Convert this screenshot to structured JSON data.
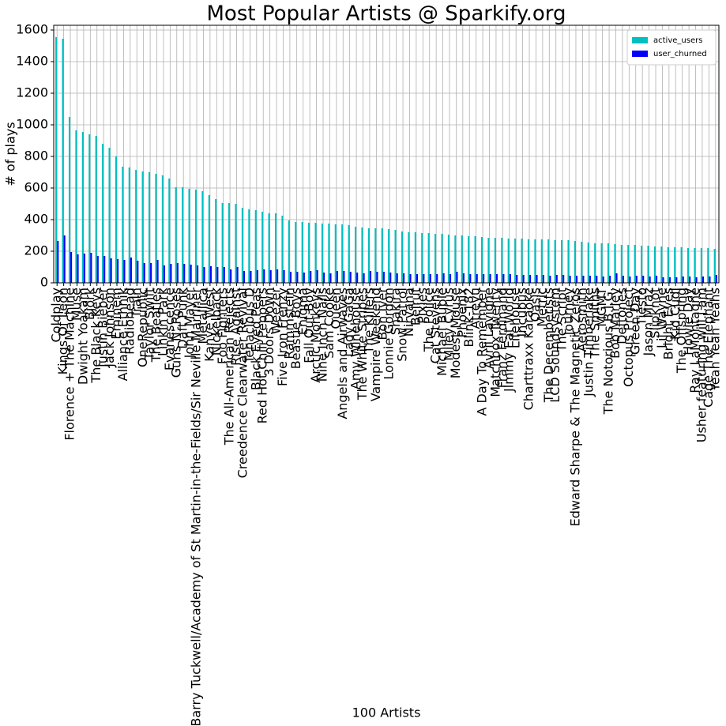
{
  "chart_data": {
    "type": "bar",
    "title": "Most Popular Artists @ Sparkify.org",
    "xlabel": "100 Artists",
    "ylabel": "# of plays",
    "categories": [
      "Coldplay",
      "Kings Of Leon",
      "Florence + The Machine",
      "Muse",
      "Dwight Yoakam",
      "Björk",
      "The Black Keys",
      "Justin Bieber",
      "Jack Johnson",
      "Eminem",
      "Alliance Ethnik",
      "Radiohead",
      "Train",
      "OneRepublic",
      "Taylor Swift",
      "The Beatles",
      "Linkin Park",
      "Evanescence",
      "Guns N' Roses",
      "Daft Punk",
      "John Mayer",
      "Barry Tuckwell/Academy of St Martin-in-the-Fields/Sir Neville Marriner",
      "Metallica",
      "Kanye West",
      "Nickelback",
      "Foo Fighters",
      "The All-American Rejects",
      "Rise Against",
      "Creedence Clearwater Revival",
      "Tenacious D",
      "Black Eyed Peas",
      "Red Hot Chili Peppers",
      "3 Doors Down",
      "Weezer",
      "Five Iron Frenzy",
      "Rammstein",
      "Beastie Boys",
      "Enigma",
      "Fall Out Boy",
      "Arctic Monkeys",
      "Nine Inch Nails",
      "Sam Cooke",
      "Queen",
      "Angels and Airwaves",
      "Lady GaGa",
      "Amy Winehouse",
      "The White Stripes",
      "The Killers",
      "Vampire Weekend",
      "Bon Iver",
      "Lonnie Gordon",
      "Shakira",
      "Snow Patrol",
      "Nirvana",
      "Beirut",
      "Pixies",
      "The Police",
      "Cat Stevens",
      "Michael Bublé",
      "Miley Cyrus",
      "Modest Mouse",
      "Phoenix",
      "Blink-182",
      "Atreyu",
      "A Day To Remember",
      "Avril Lavigne",
      "Matchbox Twenty",
      "Franz Ferdinand",
      "Jimmy Eat World",
      "Lifehouse",
      "Incubus",
      "Charttraxx Karaoke",
      "Oasis",
      "Metric",
      "The Decemberists",
      "LCD Soundsystem",
      "The Script",
      "Journey",
      "Edward Sharpe & The Magnetic Zeros",
      "Aerosmith",
      "Justin Timberlake",
      "The Smiths",
      "MGMT",
      "The Notorious B.I.G.",
      "Bob Marley",
      "Deftones",
      "Octopus Project",
      "Green Day",
      "Tiësto",
      "Jason Mraz",
      "Slipknot",
      "Lil Wayne",
      "Bright Eyes",
      "Kid Cudi",
      "The Offspring",
      "Howie Day",
      "Ray LaMontagne",
      "Usher featuring will.i.am",
      "Cage The Elephant",
      "Yeah Yeah Yeahs"
    ],
    "series": [
      {
        "name": "active_users",
        "color": "#00bfbf",
        "values": [
          1555,
          1545,
          1050,
          965,
          955,
          940,
          930,
          880,
          855,
          800,
          735,
          730,
          715,
          705,
          700,
          690,
          680,
          660,
          605,
          605,
          595,
          590,
          580,
          555,
          530,
          505,
          505,
          500,
          475,
          465,
          460,
          450,
          440,
          440,
          425,
          395,
          385,
          385,
          380,
          380,
          375,
          375,
          370,
          370,
          365,
          355,
          350,
          345,
          345,
          345,
          340,
          335,
          325,
          320,
          320,
          315,
          315,
          310,
          310,
          305,
          300,
          300,
          295,
          295,
          290,
          285,
          285,
          285,
          280,
          280,
          280,
          275,
          275,
          275,
          275,
          270,
          270,
          270,
          265,
          260,
          255,
          250,
          250,
          250,
          245,
          240,
          240,
          240,
          235,
          235,
          230,
          230,
          225,
          225,
          225,
          220,
          220,
          220,
          220,
          215
        ]
      },
      {
        "name": "user_churned",
        "color": "#0000ff",
        "values": [
          265,
          300,
          195,
          180,
          185,
          190,
          170,
          170,
          155,
          150,
          145,
          160,
          140,
          125,
          125,
          145,
          110,
          120,
          125,
          120,
          115,
          110,
          100,
          105,
          100,
          100,
          85,
          100,
          75,
          75,
          80,
          85,
          80,
          85,
          80,
          70,
          70,
          65,
          75,
          80,
          65,
          60,
          75,
          75,
          70,
          65,
          60,
          75,
          70,
          70,
          65,
          60,
          60,
          55,
          55,
          55,
          55,
          55,
          60,
          55,
          70,
          60,
          55,
          55,
          55,
          55,
          55,
          55,
          55,
          50,
          50,
          50,
          50,
          50,
          45,
          50,
          50,
          45,
          45,
          45,
          45,
          45,
          40,
          45,
          60,
          45,
          40,
          45,
          45,
          40,
          45,
          35,
          35,
          35,
          40,
          40,
          35,
          40,
          40,
          50
        ]
      }
    ],
    "ylim": [
      0,
      1630
    ],
    "yticks": [
      0,
      200,
      400,
      600,
      800,
      1000,
      1200,
      1400,
      1600
    ],
    "grid": true,
    "legend": "upper right"
  }
}
